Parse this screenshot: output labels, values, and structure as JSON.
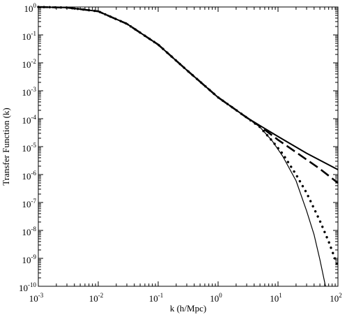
{
  "chart_data": {
    "type": "line",
    "xlabel": "k (h/Mpc)",
    "ylabel": "Transfer Function (k)",
    "xscale": "log",
    "yscale": "log",
    "xlim": [
      0.001,
      100
    ],
    "ylim": [
      1e-10,
      1
    ],
    "grid": false,
    "legend": "none",
    "x_ticks": [
      {
        "base": "10",
        "exp": "-3",
        "value": 0.001
      },
      {
        "base": "10",
        "exp": "-2",
        "value": 0.01
      },
      {
        "base": "10",
        "exp": "-1",
        "value": 0.1
      },
      {
        "base": "10",
        "exp": "0",
        "value": 1
      },
      {
        "base": "10",
        "exp": "1",
        "value": 10
      },
      {
        "base": "10",
        "exp": "2",
        "value": 100
      }
    ],
    "y_ticks": [
      {
        "base": "10",
        "exp": "0",
        "value": 1
      },
      {
        "base": "10",
        "exp": "-1",
        "value": 0.1
      },
      {
        "base": "10",
        "exp": "-2",
        "value": 0.01
      },
      {
        "base": "10",
        "exp": "-3",
        "value": 0.001
      },
      {
        "base": "10",
        "exp": "-4",
        "value": 0.0001
      },
      {
        "base": "10",
        "exp": "-5",
        "value": 1e-05
      },
      {
        "base": "10",
        "exp": "-6",
        "value": 1e-06
      },
      {
        "base": "10",
        "exp": "-7",
        "value": 1e-07
      },
      {
        "base": "10",
        "exp": "-8",
        "value": 1e-08
      },
      {
        "base": "10",
        "exp": "-9",
        "value": 1e-09
      },
      {
        "base": "10",
        "exp": "-10",
        "value": 1e-10
      }
    ],
    "series": [
      {
        "style": "solid-thick",
        "color": "#000000",
        "x": [
          0.001,
          0.003,
          0.01,
          0.03,
          0.1,
          0.3,
          1,
          3,
          10,
          30,
          100
        ],
        "y": [
          1,
          0.95,
          0.7,
          0.25,
          0.045,
          0.0055,
          0.00058,
          0.00011,
          2.3e-05,
          5.8e-06,
          1.5e-06
        ]
      },
      {
        "style": "dashed",
        "color": "#000000",
        "x": [
          0.001,
          0.003,
          0.01,
          0.03,
          0.1,
          0.3,
          1,
          3,
          5,
          10,
          20,
          50,
          100
        ],
        "y": [
          1,
          0.95,
          0.7,
          0.25,
          0.045,
          0.0055,
          0.00058,
          0.00011,
          5.4e-05,
          1.75e-05,
          6.3e-06,
          1.6e-06,
          5e-07
        ]
      },
      {
        "style": "dotted",
        "color": "#000000",
        "x": [
          0.001,
          0.003,
          0.01,
          0.03,
          0.1,
          0.3,
          1,
          3,
          5,
          8,
          12,
          20,
          30,
          50,
          70,
          100
        ],
        "y": [
          1,
          0.95,
          0.7,
          0.25,
          0.045,
          0.0055,
          0.00058,
          0.00011,
          5e-05,
          1.6e-05,
          5.5e-06,
          1e-06,
          2.2e-07,
          2.2e-08,
          4e-09,
          5e-10
        ]
      },
      {
        "style": "solid-thin",
        "color": "#000000",
        "x": [
          0.001,
          0.003,
          0.01,
          0.03,
          0.1,
          0.3,
          1,
          3,
          5,
          8,
          12,
          20,
          30,
          40,
          50,
          62
        ],
        "y": [
          1,
          0.95,
          0.7,
          0.25,
          0.045,
          0.0055,
          0.00058,
          0.00011,
          5e-05,
          1.6e-05,
          4.5e-06,
          6e-07,
          5e-08,
          7e-09,
          9e-10,
          1e-10
        ]
      }
    ]
  }
}
